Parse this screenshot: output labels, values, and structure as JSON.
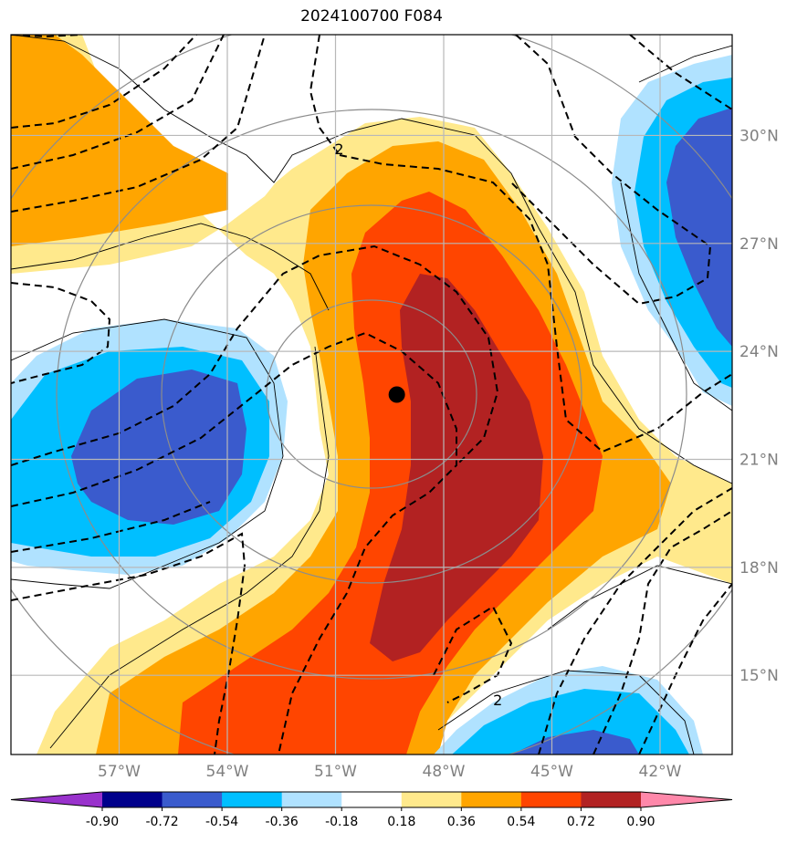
{
  "chart_data": {
    "type": "contour-map",
    "title": "2024100700 F084",
    "projection_extent": {
      "lon": [
        -60,
        -40
      ],
      "lat": [
        12.8,
        32.8
      ]
    },
    "x_ticks": [
      {
        "lon": -57,
        "label": "57°W"
      },
      {
        "lon": -54,
        "label": "54°W"
      },
      {
        "lon": -51,
        "label": "51°W"
      },
      {
        "lon": -48,
        "label": "48°W"
      },
      {
        "lon": -45,
        "label": "45°W"
      },
      {
        "lon": -42,
        "label": "42°W"
      }
    ],
    "y_ticks": [
      {
        "lat": 15,
        "label": "15°N"
      },
      {
        "lat": 18,
        "label": "18°N"
      },
      {
        "lat": 21,
        "label": "21°N"
      },
      {
        "lat": 24,
        "label": "24°N"
      },
      {
        "lat": 27,
        "label": "27°N"
      },
      {
        "lat": 30,
        "label": "30°N"
      }
    ],
    "grid": true,
    "center_marker": {
      "lon": -49.3,
      "lat": 22.8
    },
    "colorbar": {
      "boundaries": [
        "-0.90",
        "-0.72",
        "-0.54",
        "-0.36",
        "-0.18",
        "0.18",
        "0.36",
        "0.54",
        "0.72",
        "0.90"
      ],
      "colors": [
        "#9932cc",
        "#00008b",
        "#3a5bcd",
        "#00bfff",
        "#b0e2ff",
        "#ffffff",
        "#ffe98c",
        "#ffa500",
        "#ff4500",
        "#b22222",
        "#ff88aa"
      ],
      "extend": "both"
    },
    "contour_labels": [
      {
        "lon": -50.9,
        "lat": 29.6,
        "text": "2"
      },
      {
        "lon": -46.5,
        "lat": 14.3,
        "text": "2"
      }
    ],
    "range_rings_center": {
      "lon": -49.3,
      "lat": 22.8
    },
    "range_rings_radius_deg": [
      2.5,
      5,
      7.5,
      10
    ]
  }
}
